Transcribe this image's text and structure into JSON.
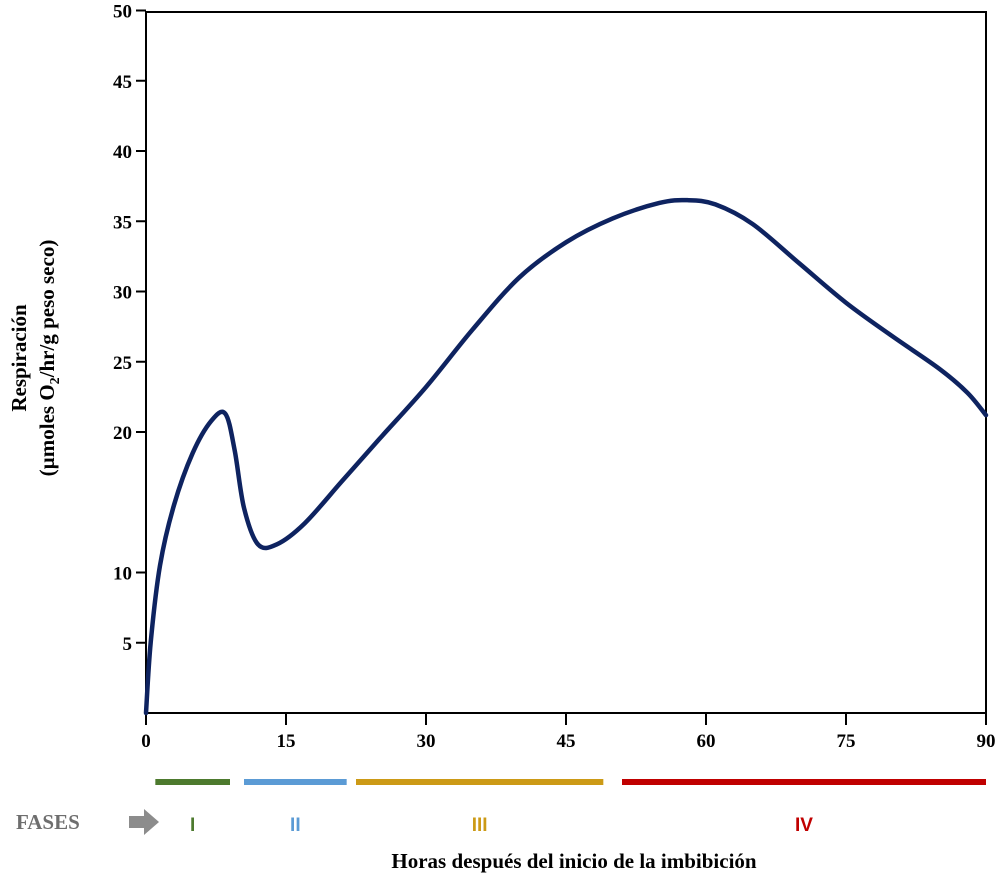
{
  "chart_data": {
    "type": "line",
    "xlabel": "Horas después del inicio de la imbibición",
    "ylabel_line1": "Respiración",
    "ylabel_line2_pre": "(µmoles O",
    "ylabel_line2_sub": "2",
    "ylabel_line2_post": "/hr/g peso seco)",
    "xlim": [
      0,
      90
    ],
    "ylim": [
      0,
      52
    ],
    "x_ticks": [
      0,
      15,
      30,
      45,
      60,
      75,
      90
    ],
    "y_ticks": [
      5,
      10,
      20,
      25,
      30,
      35,
      40,
      45,
      50
    ],
    "grid": false,
    "series": [
      {
        "color": "#0e2360",
        "x": [
          0,
          0.5,
          1.5,
          3,
          5,
          7,
          8.5,
          9.5,
          10.5,
          12,
          14,
          17,
          21,
          25,
          30,
          35,
          40,
          45,
          50,
          55,
          58,
          61,
          65,
          70,
          75,
          80,
          85,
          88,
          90
        ],
        "y": [
          0,
          5,
          10.5,
          14.8,
          18.5,
          20.8,
          21.3,
          18.7,
          14.6,
          12,
          12,
          13.5,
          16.5,
          19.5,
          23.2,
          27.3,
          31.0,
          33.5,
          35.2,
          36.3,
          36.5,
          36.2,
          34.8,
          32,
          29.2,
          26.8,
          24.5,
          22.8,
          21.2
        ]
      }
    ],
    "phases_label": "FASES",
    "phases": [
      {
        "label": "I",
        "start": 1,
        "end": 9,
        "color": "#4d7a2e"
      },
      {
        "label": "II",
        "start": 10.5,
        "end": 21.5,
        "color": "#5b9bd5"
      },
      {
        "label": "III",
        "start": 22.5,
        "end": 49,
        "color": "#cc9a16"
      },
      {
        "label": "IV",
        "start": 51,
        "end": 90,
        "color": "#c00000"
      }
    ]
  }
}
